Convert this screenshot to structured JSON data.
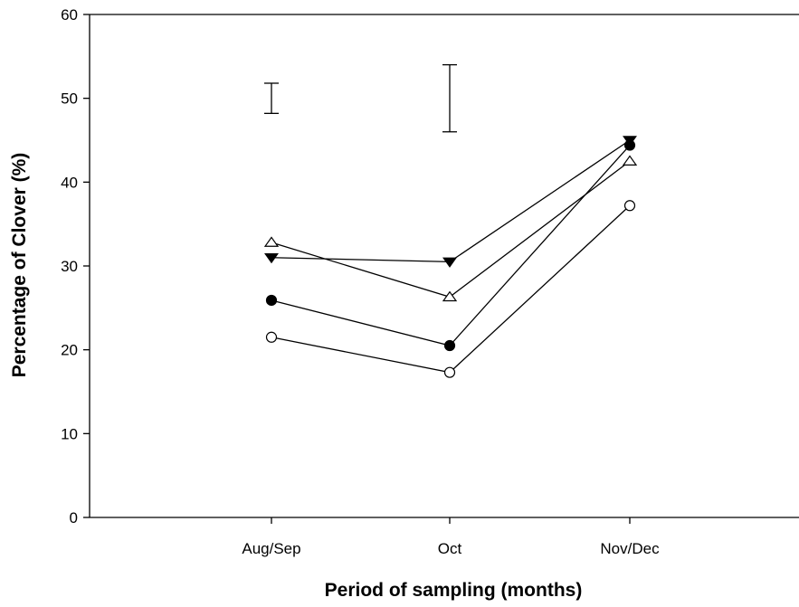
{
  "chart_data": {
    "type": "line",
    "title": "",
    "xlabel": "Period of sampling (months)",
    "ylabel": "Percentage of Clover (%)",
    "categories": [
      "Aug/Sep",
      "Oct",
      "Nov/Dec"
    ],
    "ylim": [
      0,
      60
    ],
    "yticks": [
      0,
      10,
      20,
      30,
      40,
      50,
      60
    ],
    "grid": false,
    "legend": "none",
    "series": [
      {
        "marker": "filled-triangle-down",
        "values": [
          31.0,
          30.5,
          45.0
        ]
      },
      {
        "marker": "open-triangle-up",
        "values": [
          32.8,
          26.3,
          42.5
        ]
      },
      {
        "marker": "filled-circle",
        "values": [
          25.9,
          20.5,
          44.4
        ]
      },
      {
        "marker": "open-circle",
        "values": [
          21.5,
          17.3,
          37.2
        ]
      }
    ],
    "error_bars": [
      {
        "category": "Aug/Sep",
        "low": 48.2,
        "high": 51.8
      },
      {
        "category": "Oct",
        "low": 46.0,
        "high": 54.0
      }
    ]
  }
}
